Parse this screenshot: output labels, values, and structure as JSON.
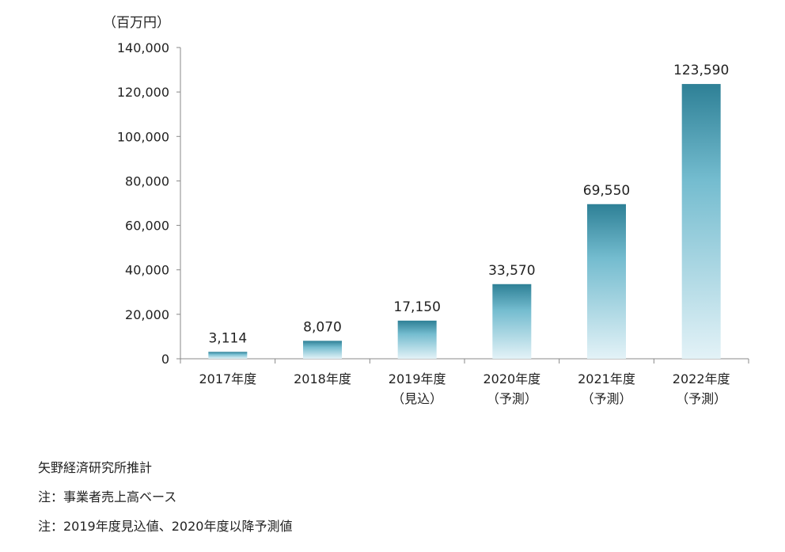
{
  "chart_data": {
    "type": "bar",
    "unit_label": "（百万円）",
    "categories": [
      [
        "2017年度"
      ],
      [
        "2018年度"
      ],
      [
        "2019年度",
        "（見込）"
      ],
      [
        "2020年度",
        "（予測）"
      ],
      [
        "2021年度",
        "（予測）"
      ],
      [
        "2022年度",
        "（予測）"
      ]
    ],
    "values": [
      3114,
      8070,
      17150,
      33570,
      69550,
      123590
    ],
    "data_labels": [
      "3,114",
      "8,070",
      "17,150",
      "33,570",
      "69,550",
      "123,590"
    ],
    "yticks": [
      "0",
      "20,000",
      "40,000",
      "60,000",
      "80,000",
      "100,000",
      "120,000",
      "140,000"
    ],
    "ylim": [
      0,
      140000
    ],
    "grid": false,
    "colors": {
      "bar_top": "#2e8096",
      "bar_mid": "#74bccf",
      "bar_bottom": "#e3f2f7",
      "axis": "#888888"
    }
  },
  "notes": [
    "矢野経済研究所推計",
    "注：事業者売上高ベース",
    "注：2019年度見込値、2020年度以降予測値"
  ]
}
